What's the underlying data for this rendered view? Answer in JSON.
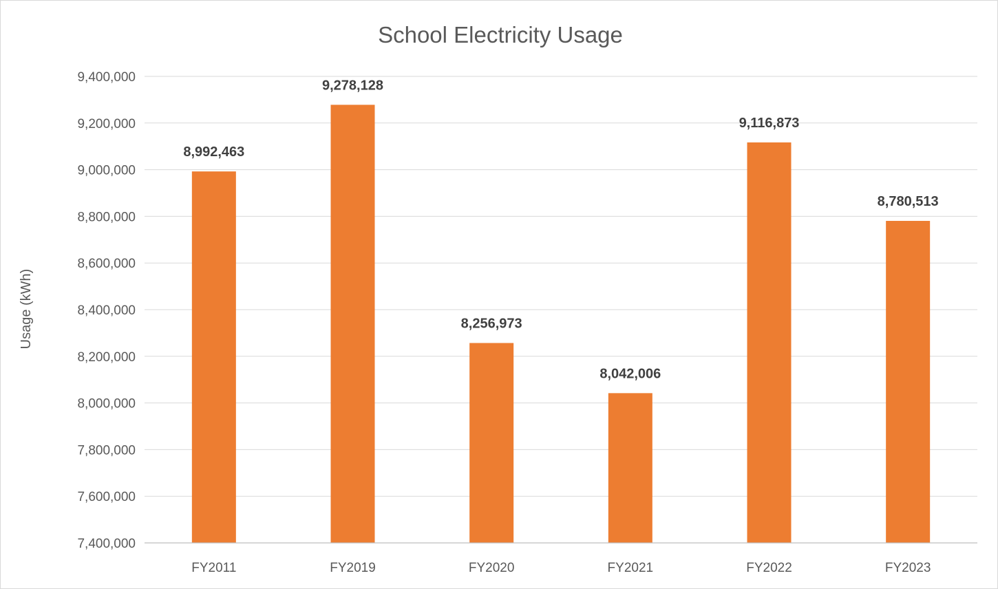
{
  "chart_data": {
    "type": "bar",
    "title": "School Electricity Usage",
    "xlabel": "",
    "ylabel": "Usage (kWh)",
    "categories": [
      "FY2011",
      "FY2019",
      "FY2020",
      "FY2021",
      "FY2022",
      "FY2023"
    ],
    "values": [
      8992463,
      9278128,
      8256973,
      8042006,
      9116873,
      8780513
    ],
    "data_labels": [
      "8,992,463",
      "9,278,128",
      "8,256,973",
      "8,042,006",
      "9,116,873",
      "8,780,513"
    ],
    "ylim": [
      7400000,
      9400000
    ],
    "yticks": [
      7400000,
      7600000,
      7800000,
      8000000,
      8200000,
      8400000,
      8600000,
      8800000,
      9000000,
      9200000,
      9400000
    ],
    "ytick_labels": [
      "7,400,000",
      "7,600,000",
      "7,800,000",
      "8,000,000",
      "8,200,000",
      "8,400,000",
      "8,600,000",
      "8,800,000",
      "9,000,000",
      "9,200,000",
      "9,400,000"
    ],
    "grid": true,
    "legend": "none",
    "bar_color": "#ED7D31"
  }
}
